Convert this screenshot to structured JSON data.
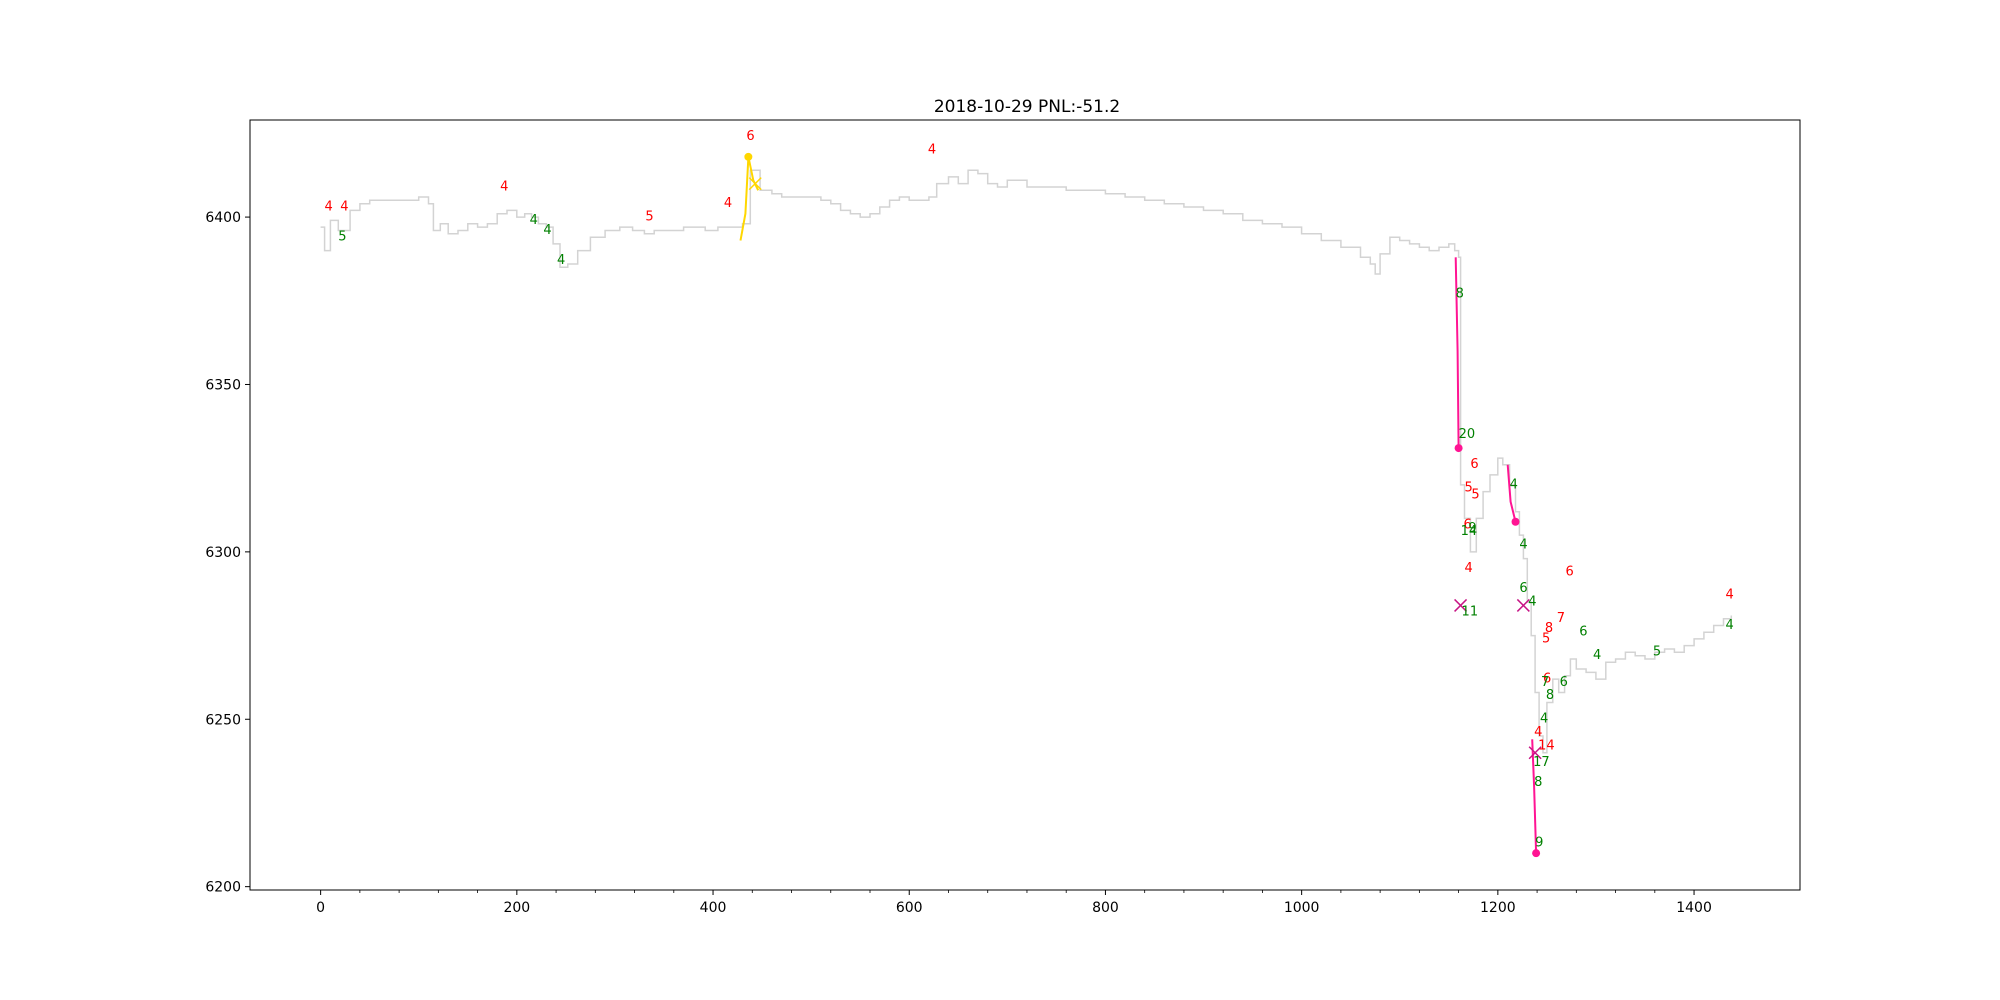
{
  "chart_data": {
    "type": "line",
    "title": "2018-10-29 PNL:-51.2",
    "xlabel": "",
    "ylabel": "",
    "xlim": [
      -72,
      1508
    ],
    "ylim": [
      6199,
      6429
    ],
    "xticks": [
      0,
      200,
      400,
      600,
      800,
      1000,
      1200,
      1400
    ],
    "xtick_labels": [
      "0",
      "200",
      "400",
      "600",
      "800",
      "1000",
      "1200",
      "1400"
    ],
    "yticks": [
      6200,
      6250,
      6300,
      6350,
      6400
    ],
    "ytick_labels": [
      "6200",
      "6250",
      "6300",
      "6350",
      "6400"
    ],
    "grid": false,
    "colors": {
      "price": "#d3d3d3",
      "trade_long": "#ffd700",
      "trade_short": "#ff1493",
      "exit_marker": "#c71585",
      "ann_red": "#ff0000",
      "ann_green": "#008000"
    },
    "price_series": {
      "name": "price",
      "x": [
        0,
        4,
        10,
        18,
        30,
        40,
        50,
        60,
        75,
        90,
        100,
        110,
        115,
        122,
        130,
        140,
        150,
        160,
        170,
        180,
        190,
        200,
        208,
        215,
        222,
        230,
        237,
        244,
        252,
        262,
        275,
        290,
        305,
        318,
        330,
        340,
        350,
        360,
        370,
        380,
        392,
        405,
        415,
        425,
        430,
        438,
        448,
        460,
        470,
        480,
        490,
        500,
        510,
        520,
        530,
        540,
        550,
        560,
        570,
        580,
        590,
        600,
        610,
        620,
        628,
        640,
        650,
        660,
        670,
        680,
        690,
        700,
        720,
        740,
        760,
        780,
        800,
        820,
        840,
        860,
        880,
        900,
        920,
        940,
        960,
        980,
        1000,
        1020,
        1040,
        1060,
        1070,
        1075,
        1080,
        1090,
        1100,
        1110,
        1120,
        1130,
        1140,
        1150,
        1156,
        1160,
        1162,
        1166,
        1172,
        1178,
        1185,
        1192,
        1200,
        1205,
        1212,
        1218,
        1222,
        1226,
        1230,
        1234,
        1238,
        1242,
        1246,
        1250,
        1256,
        1262,
        1268,
        1274,
        1280,
        1290,
        1300,
        1310,
        1320,
        1330,
        1340,
        1350,
        1360,
        1370,
        1380,
        1390,
        1400,
        1410,
        1420,
        1430,
        1438
      ],
      "y": [
        6397,
        6390,
        6399,
        6396,
        6402,
        6404,
        6405,
        6405,
        6405,
        6405,
        6406,
        6404,
        6396,
        6398,
        6395,
        6396,
        6398,
        6397,
        6398,
        6401,
        6402,
        6400,
        6401,
        6400,
        6398,
        6397,
        6392,
        6385,
        6386,
        6390,
        6394,
        6396,
        6397,
        6396,
        6395,
        6396,
        6396,
        6396,
        6397,
        6397,
        6396,
        6397,
        6397,
        6397,
        6398,
        6414,
        6408,
        6407,
        6406,
        6406,
        6406,
        6406,
        6405,
        6404,
        6402,
        6401,
        6400,
        6401,
        6403,
        6405,
        6406,
        6405,
        6405,
        6406,
        6410,
        6412,
        6410,
        6414,
        6413,
        6410,
        6409,
        6411,
        6409,
        6409,
        6408,
        6408,
        6407,
        6406,
        6405,
        6404,
        6403,
        6402,
        6401,
        6399,
        6398,
        6397,
        6395,
        6393,
        6391,
        6388,
        6386,
        6383,
        6389,
        6394,
        6393,
        6392,
        6391,
        6390,
        6391,
        6392,
        6390,
        6388,
        6320,
        6310,
        6300,
        6310,
        6318,
        6323,
        6328,
        6326,
        6320,
        6312,
        6305,
        6298,
        6285,
        6275,
        6258,
        6245,
        6240,
        6255,
        6262,
        6258,
        6263,
        6268,
        6265,
        6264,
        6262,
        6267,
        6268,
        6270,
        6269,
        6268,
        6270,
        6271,
        6270,
        6272,
        6274,
        6276,
        6278,
        6280,
        6281
      ]
    },
    "trade_lines": [
      {
        "name": "long-entry-1",
        "color": "#ffd700",
        "x": [
          428,
          433,
          436,
          441,
          446
        ],
        "y": [
          6393,
          6401,
          6418,
          6411,
          6408
        ]
      },
      {
        "name": "short-1",
        "color": "#ff1493",
        "x": [
          1157,
          1159,
          1160
        ],
        "y": [
          6388,
          6360,
          6331
        ]
      },
      {
        "name": "short-2",
        "color": "#ff1493",
        "x": [
          1210,
          1213,
          1218
        ],
        "y": [
          6326,
          6315,
          6309
        ]
      },
      {
        "name": "short-3",
        "color": "#ff1493",
        "x": [
          1235,
          1237,
          1239
        ],
        "y": [
          6244,
          6230,
          6210
        ]
      }
    ],
    "entry_points": [
      {
        "x": 436,
        "y": 6418,
        "color": "#ffd700"
      },
      {
        "x": 1160,
        "y": 6331,
        "color": "#ff1493"
      },
      {
        "x": 1218,
        "y": 6309,
        "color": "#ff1493"
      },
      {
        "x": 1239,
        "y": 6210,
        "color": "#ff1493"
      }
    ],
    "exit_markers": [
      {
        "x": 443,
        "y": 6410,
        "color": "#ffd700"
      },
      {
        "x": 1162,
        "y": 6284,
        "color": "#c71585"
      },
      {
        "x": 1226,
        "y": 6284,
        "color": "#c71585"
      },
      {
        "x": 1238,
        "y": 6240,
        "color": "#c71585"
      }
    ],
    "annotations": [
      {
        "text": "4",
        "x": 4,
        "y": 6402,
        "color": "#ff0000"
      },
      {
        "text": "4",
        "x": 20,
        "y": 6402,
        "color": "#ff0000"
      },
      {
        "text": "5",
        "x": 18,
        "y": 6393,
        "color": "#008000"
      },
      {
        "text": "4",
        "x": 183,
        "y": 6408,
        "color": "#ff0000"
      },
      {
        "text": "4",
        "x": 213,
        "y": 6398,
        "color": "#008000"
      },
      {
        "text": "4",
        "x": 227,
        "y": 6395,
        "color": "#008000"
      },
      {
        "text": "4",
        "x": 241,
        "y": 6386,
        "color": "#008000"
      },
      {
        "text": "5",
        "x": 331,
        "y": 6399,
        "color": "#ff0000"
      },
      {
        "text": "4",
        "x": 411,
        "y": 6403,
        "color": "#ff0000"
      },
      {
        "text": "6",
        "x": 434,
        "y": 6423,
        "color": "#ff0000"
      },
      {
        "text": "4",
        "x": 619,
        "y": 6419,
        "color": "#ff0000"
      },
      {
        "text": "8",
        "x": 1157,
        "y": 6376,
        "color": "#008000"
      },
      {
        "text": "20",
        "x": 1160,
        "y": 6334,
        "color": "#008000"
      },
      {
        "text": "6",
        "x": 1172,
        "y": 6325,
        "color": "#ff0000"
      },
      {
        "text": "5",
        "x": 1166,
        "y": 6318,
        "color": "#ff0000"
      },
      {
        "text": "5",
        "x": 1173,
        "y": 6316,
        "color": "#ff0000"
      },
      {
        "text": "6",
        "x": 1165,
        "y": 6307,
        "color": "#ff0000"
      },
      {
        "text": "9",
        "x": 1170,
        "y": 6306,
        "color": "#008000"
      },
      {
        "text": "14",
        "x": 1162,
        "y": 6305,
        "color": "#008000"
      },
      {
        "text": "4",
        "x": 1166,
        "y": 6294,
        "color": "#ff0000"
      },
      {
        "text": "11",
        "x": 1163,
        "y": 6281,
        "color": "#008000"
      },
      {
        "text": "4",
        "x": 1212,
        "y": 6319,
        "color": "#008000"
      },
      {
        "text": "4",
        "x": 1222,
        "y": 6301,
        "color": "#008000"
      },
      {
        "text": "6",
        "x": 1222,
        "y": 6288,
        "color": "#008000"
      },
      {
        "text": "4",
        "x": 1231,
        "y": 6284,
        "color": "#008000"
      },
      {
        "text": "6",
        "x": 1269,
        "y": 6293,
        "color": "#ff0000"
      },
      {
        "text": "7",
        "x": 1260,
        "y": 6279,
        "color": "#ff0000"
      },
      {
        "text": "8",
        "x": 1248,
        "y": 6276,
        "color": "#ff0000"
      },
      {
        "text": "6",
        "x": 1283,
        "y": 6275,
        "color": "#008000"
      },
      {
        "text": "5",
        "x": 1245,
        "y": 6273,
        "color": "#ff0000"
      },
      {
        "text": "4",
        "x": 1297,
        "y": 6268,
        "color": "#008000"
      },
      {
        "text": "6",
        "x": 1263,
        "y": 6260,
        "color": "#008000"
      },
      {
        "text": "6",
        "x": 1246,
        "y": 6261,
        "color": "#ff0000"
      },
      {
        "text": "7",
        "x": 1244,
        "y": 6260,
        "color": "#008000"
      },
      {
        "text": "8",
        "x": 1249,
        "y": 6256,
        "color": "#008000"
      },
      {
        "text": "4",
        "x": 1243,
        "y": 6249,
        "color": "#008000"
      },
      {
        "text": "4",
        "x": 1237,
        "y": 6245,
        "color": "#ff0000"
      },
      {
        "text": "14",
        "x": 1241,
        "y": 6241,
        "color": "#ff0000"
      },
      {
        "text": "17",
        "x": 1236,
        "y": 6236,
        "color": "#008000"
      },
      {
        "text": "8",
        "x": 1237,
        "y": 6230,
        "color": "#008000"
      },
      {
        "text": "9",
        "x": 1238,
        "y": 6212,
        "color": "#008000"
      },
      {
        "text": "5",
        "x": 1358,
        "y": 6269,
        "color": "#008000"
      },
      {
        "text": "4",
        "x": 1432,
        "y": 6286,
        "color": "#ff0000"
      },
      {
        "text": "4",
        "x": 1432,
        "y": 6277,
        "color": "#008000"
      }
    ]
  }
}
